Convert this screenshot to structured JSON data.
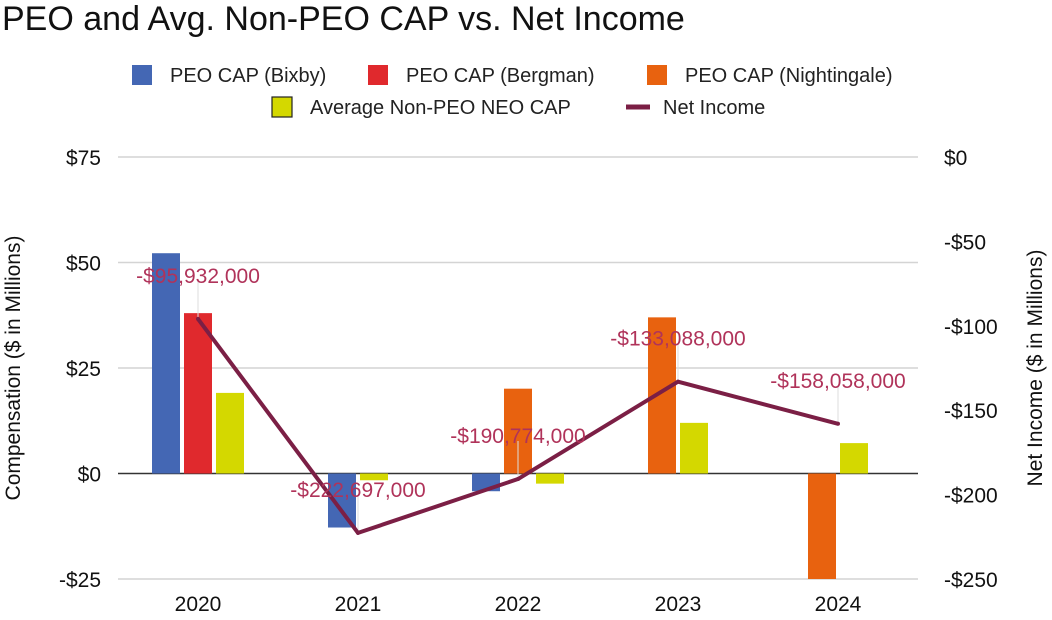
{
  "chart_data": {
    "type": "bar",
    "title": "PEO and Avg. Non-PEO CAP vs. Net Income",
    "categories": [
      "2020",
      "2021",
      "2022",
      "2023",
      "2024"
    ],
    "series": [
      {
        "name": "PEO CAP (Bixby)",
        "color": "#4467b4",
        "values": [
          52.2,
          -12.8,
          -4.2,
          null,
          null
        ]
      },
      {
        "name": "PEO CAP (Bergman)",
        "color": "#e0292d",
        "values": [
          38.0,
          null,
          null,
          null,
          null
        ]
      },
      {
        "name": "PEO CAP (Nightingale)",
        "color": "#e8620f",
        "values": [
          null,
          null,
          20.1,
          37.0,
          -25.0
        ]
      },
      {
        "name": "Average Non-PEO NEO CAP",
        "color": "#d4d800",
        "values": [
          19.1,
          -1.6,
          -2.4,
          12.0,
          7.2
        ]
      }
    ],
    "line_series": {
      "name": "Net Income",
      "color": "#7b1f45",
      "values": [
        -95.932,
        -222.697,
        -190.774,
        -133.088,
        -158.058
      ],
      "data_labels": [
        "-$95,932,000",
        "-$222,697,000",
        "-$190,774,000",
        "-$133,088,000",
        "-$158,058,000"
      ]
    },
    "ylabel": "Compensation ($ in Millions)",
    "y2label": "Net Income ($ in Millions)",
    "ylim": [
      -25,
      75
    ],
    "y2lim": [
      -250,
      0
    ],
    "y_ticks": [
      75,
      50,
      25,
      0,
      -25
    ],
    "y_tick_labels": [
      "$75",
      "$50",
      "$25",
      "$0",
      "-$25"
    ],
    "y2_ticks": [
      0,
      -50,
      -100,
      -150,
      -200,
      -250
    ],
    "y2_tick_labels": [
      "$0",
      "-$50",
      "-$100",
      "-$150",
      "-$200",
      "-$250"
    ],
    "legend_position": "top",
    "grid": true
  }
}
